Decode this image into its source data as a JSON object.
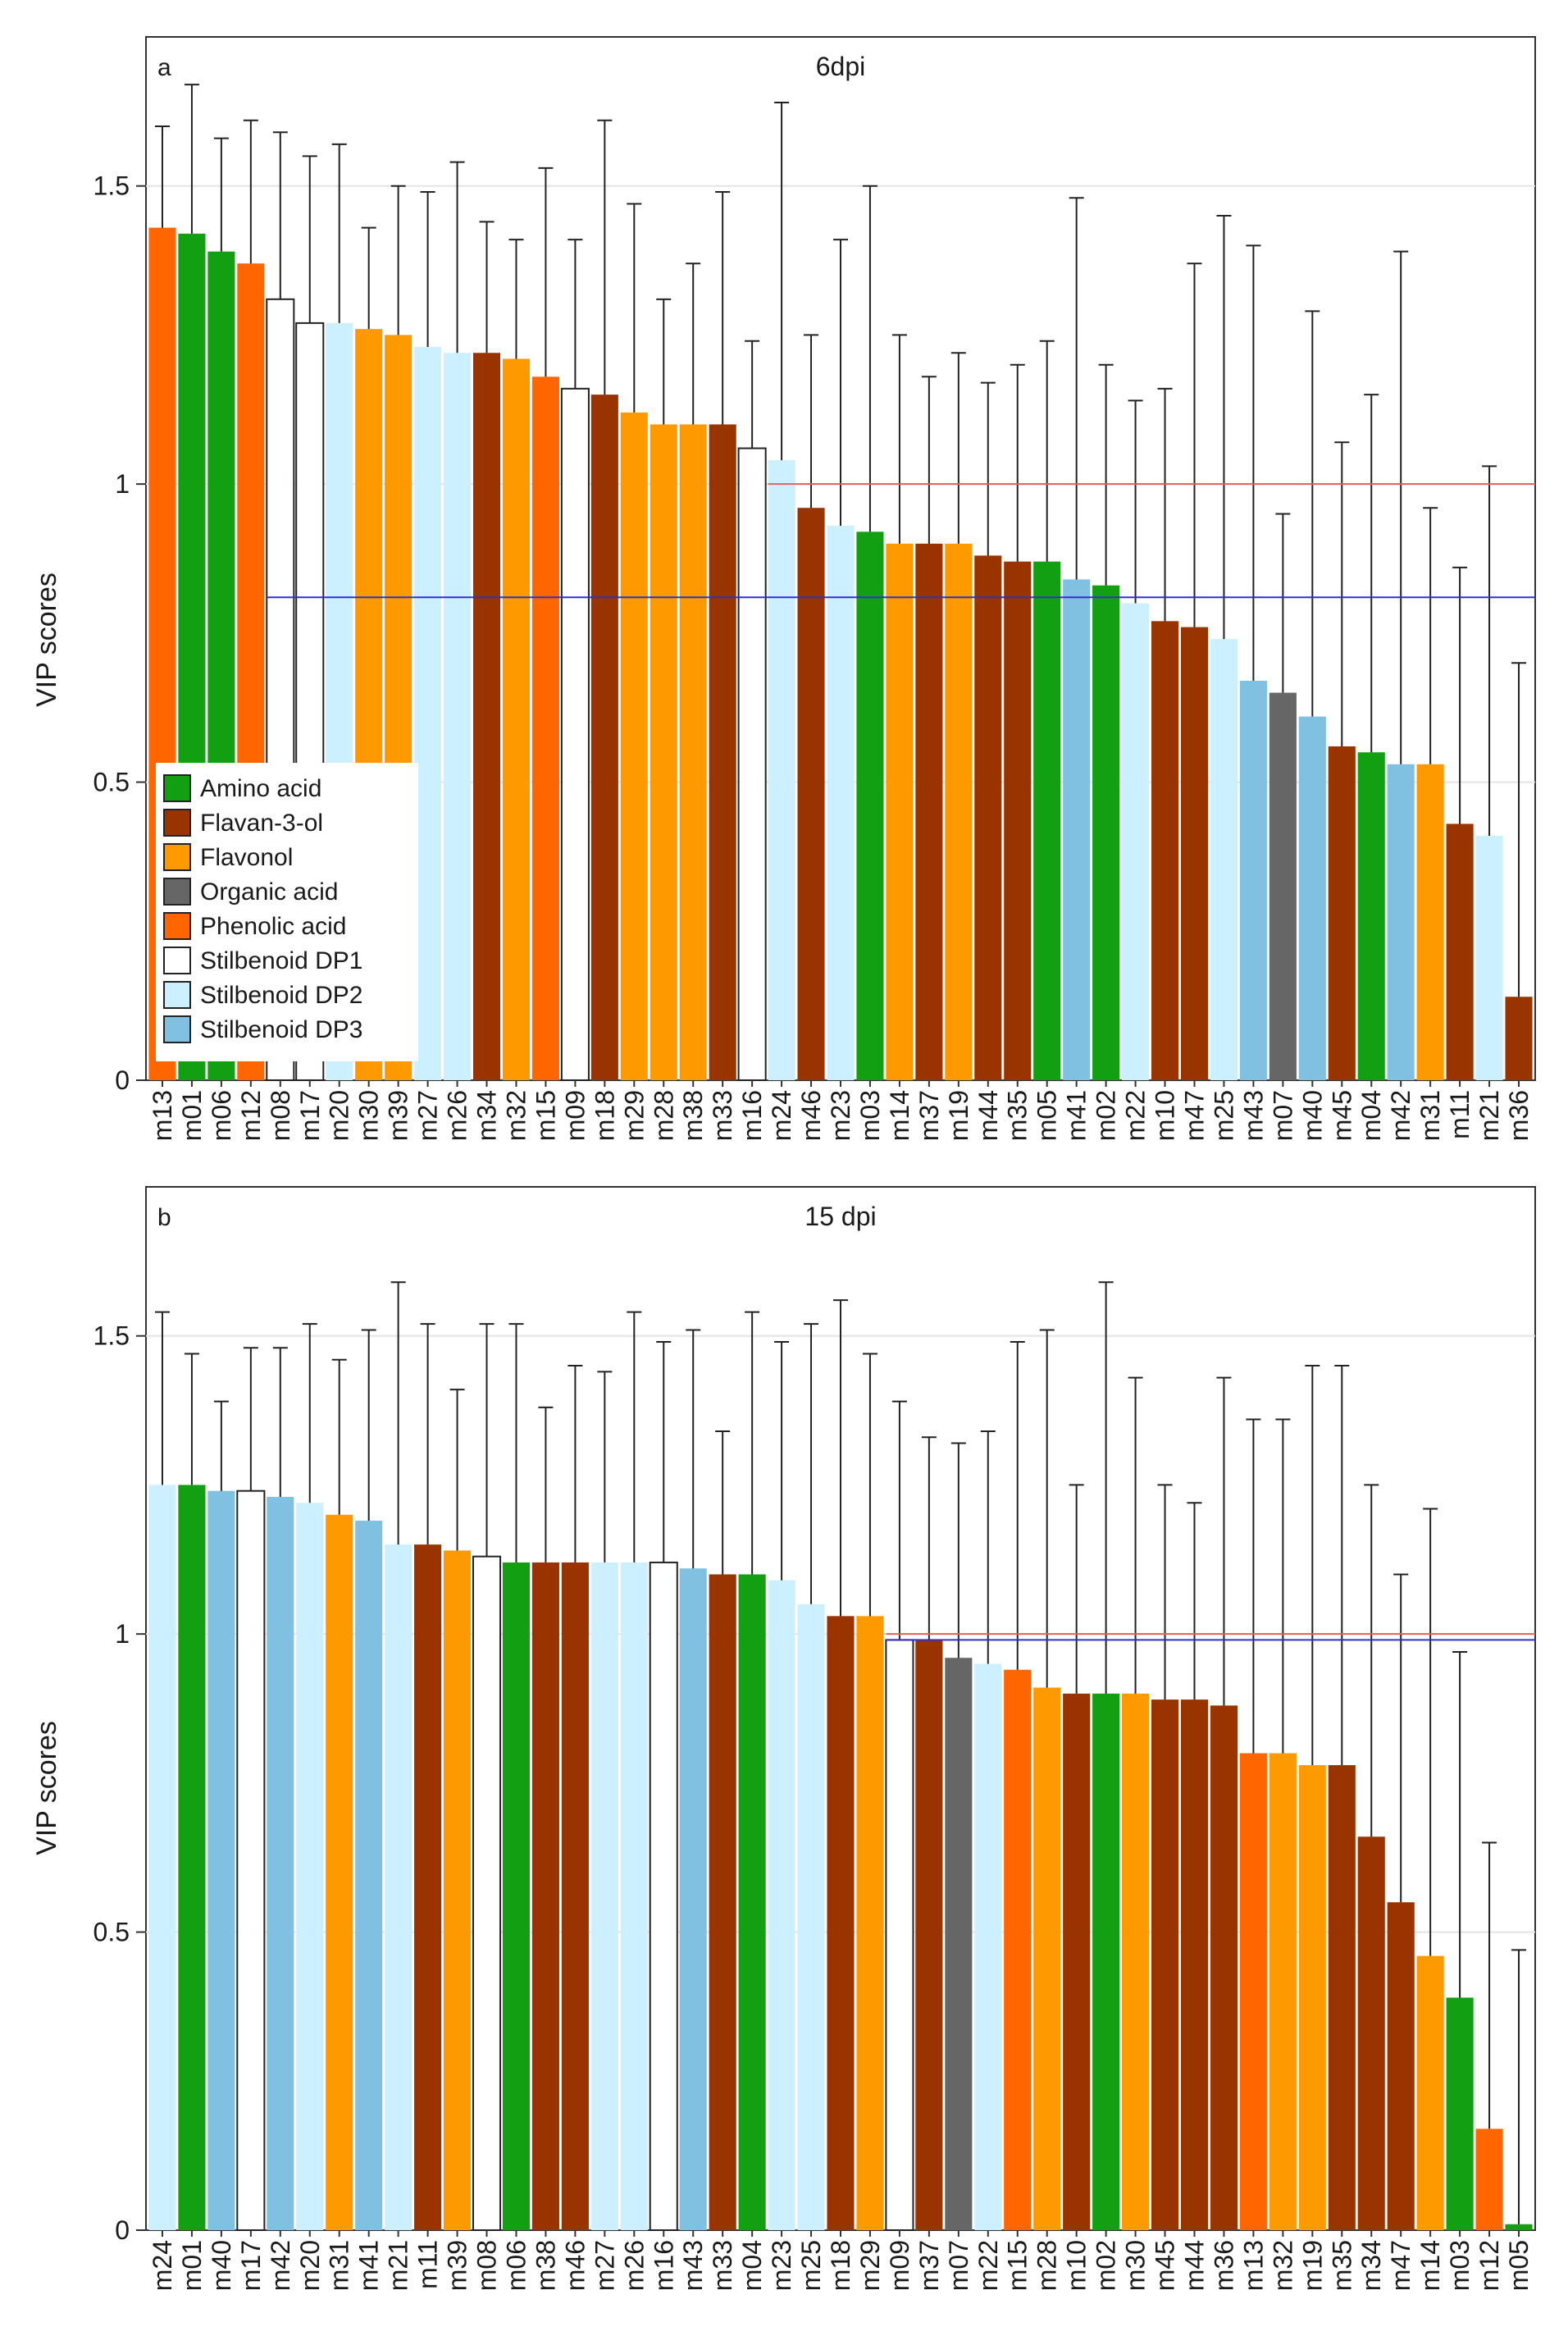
{
  "chart_data": [
    {
      "type": "bar",
      "panel_letter": "a",
      "title": "6dpi",
      "xlabel": "",
      "ylabel": "VIP scores",
      "ylim": [
        0,
        1.75
      ],
      "yticks": [
        0,
        0.5,
        1,
        1.5
      ],
      "ytick_labels": [
        "0",
        "0.5",
        "1",
        "1.5"
      ],
      "grid": true,
      "error_bars": "upper",
      "reference_lines": [
        {
          "value": 1.0,
          "color": "#e06060",
          "from_category": "m24"
        },
        {
          "value": 0.81,
          "color": "#3030d0",
          "from_category": "m08"
        }
      ],
      "legend_position": "lower-left",
      "categories": [
        "m13",
        "m01",
        "m06",
        "m12",
        "m08",
        "m17",
        "m20",
        "m30",
        "m39",
        "m27",
        "m26",
        "m34",
        "m32",
        "m15",
        "m09",
        "m18",
        "m29",
        "m28",
        "m38",
        "m33",
        "m16",
        "m24",
        "m46",
        "m23",
        "m03",
        "m14",
        "m37",
        "m19",
        "m44",
        "m35",
        "m05",
        "m41",
        "m02",
        "m22",
        "m10",
        "m47",
        "m25",
        "m43",
        "m07",
        "m40",
        "m45",
        "m04",
        "m42",
        "m31",
        "m11",
        "m21",
        "m36"
      ],
      "classes": [
        "Phenolic acid",
        "Amino acid",
        "Amino acid",
        "Phenolic acid",
        "Stilbenoid DP1",
        "Stilbenoid DP1",
        "Stilbenoid DP2",
        "Flavonol",
        "Flavonol",
        "Stilbenoid DP2",
        "Stilbenoid DP2",
        "Flavan-3-ol",
        "Flavonol",
        "Phenolic acid",
        "Stilbenoid DP1",
        "Flavan-3-ol",
        "Flavonol",
        "Flavonol",
        "Flavonol",
        "Flavan-3-ol",
        "Stilbenoid DP1",
        "Stilbenoid DP2",
        "Flavan-3-ol",
        "Stilbenoid DP2",
        "Amino acid",
        "Flavonol",
        "Flavan-3-ol",
        "Flavonol",
        "Flavan-3-ol",
        "Flavan-3-ol",
        "Amino acid",
        "Stilbenoid DP3",
        "Amino acid",
        "Stilbenoid DP2",
        "Flavan-3-ol",
        "Flavan-3-ol",
        "Stilbenoid DP2",
        "Stilbenoid DP3",
        "Organic acid",
        "Stilbenoid DP3",
        "Flavan-3-ol",
        "Amino acid",
        "Stilbenoid DP3",
        "Flavonol",
        "Flavan-3-ol",
        "Stilbenoid DP2",
        "Flavan-3-ol"
      ],
      "values": [
        1.43,
        1.42,
        1.39,
        1.37,
        1.31,
        1.27,
        1.27,
        1.26,
        1.25,
        1.23,
        1.22,
        1.22,
        1.21,
        1.18,
        1.16,
        1.15,
        1.12,
        1.1,
        1.1,
        1.1,
        1.06,
        1.04,
        0.96,
        0.93,
        0.92,
        0.9,
        0.9,
        0.9,
        0.88,
        0.87,
        0.87,
        0.84,
        0.83,
        0.8,
        0.77,
        0.76,
        0.74,
        0.67,
        0.65,
        0.61,
        0.56,
        0.55,
        0.53,
        0.53,
        0.43,
        0.41,
        0.14
      ],
      "error_top": [
        1.6,
        1.67,
        1.58,
        1.61,
        1.59,
        1.55,
        1.57,
        1.43,
        1.5,
        1.49,
        1.54,
        1.44,
        1.41,
        1.53,
        1.41,
        1.61,
        1.47,
        1.31,
        1.37,
        1.49,
        1.24,
        1.64,
        1.25,
        1.41,
        1.5,
        1.25,
        1.18,
        1.22,
        1.17,
        1.2,
        1.24,
        1.48,
        1.2,
        1.14,
        1.16,
        1.37,
        1.45,
        1.4,
        0.95,
        1.29,
        1.07,
        1.15,
        1.39,
        0.96,
        0.86,
        1.03,
        0.7
      ]
    },
    {
      "type": "bar",
      "panel_letter": "b",
      "title": "15 dpi",
      "xlabel": "",
      "ylabel": "VIP scores",
      "ylim": [
        0,
        1.75
      ],
      "yticks": [
        0,
        0.5,
        1,
        1.5
      ],
      "ytick_labels": [
        "0",
        "0.5",
        "1",
        "1.5"
      ],
      "grid": true,
      "error_bars": "upper",
      "reference_lines": [
        {
          "value": 1.0,
          "color": "#e06060",
          "from_category": "m09"
        },
        {
          "value": 0.99,
          "color": "#3030d0",
          "from_category": "m09"
        }
      ],
      "categories": [
        "m24",
        "m01",
        "m40",
        "m17",
        "m42",
        "m20",
        "m31",
        "m41",
        "m21",
        "m11",
        "m39",
        "m08",
        "m06",
        "m38",
        "m46",
        "m27",
        "m26",
        "m16",
        "m43",
        "m33",
        "m04",
        "m23",
        "m25",
        "m18",
        "m29",
        "m09",
        "m37",
        "m07",
        "m22",
        "m15",
        "m28",
        "m10",
        "m02",
        "m30",
        "m45",
        "m44",
        "m36",
        "m13",
        "m32",
        "m19",
        "m35",
        "m34",
        "m47",
        "m14",
        "m03",
        "m12",
        "m05"
      ],
      "classes": [
        "Stilbenoid DP2",
        "Amino acid",
        "Stilbenoid DP3",
        "Stilbenoid DP1",
        "Stilbenoid DP3",
        "Stilbenoid DP2",
        "Flavonol",
        "Stilbenoid DP3",
        "Stilbenoid DP2",
        "Flavan-3-ol",
        "Flavonol",
        "Stilbenoid DP1",
        "Amino acid",
        "Flavan-3-ol",
        "Flavan-3-ol",
        "Stilbenoid DP2",
        "Stilbenoid DP2",
        "Stilbenoid DP1",
        "Stilbenoid DP3",
        "Flavan-3-ol",
        "Amino acid",
        "Stilbenoid DP2",
        "Stilbenoid DP2",
        "Flavan-3-ol",
        "Flavonol",
        "Stilbenoid DP1",
        "Flavan-3-ol",
        "Organic acid",
        "Stilbenoid DP2",
        "Phenolic acid",
        "Flavonol",
        "Flavan-3-ol",
        "Amino acid",
        "Flavonol",
        "Flavan-3-ol",
        "Flavan-3-ol",
        "Flavan-3-ol",
        "Phenolic acid",
        "Flavonol",
        "Flavonol",
        "Flavan-3-ol",
        "Flavan-3-ol",
        "Flavan-3-ol",
        "Flavonol",
        "Amino acid",
        "Phenolic acid",
        "Amino acid"
      ],
      "values": [
        1.25,
        1.25,
        1.24,
        1.24,
        1.23,
        1.22,
        1.2,
        1.19,
        1.15,
        1.15,
        1.14,
        1.13,
        1.12,
        1.12,
        1.12,
        1.12,
        1.12,
        1.12,
        1.11,
        1.1,
        1.1,
        1.09,
        1.05,
        1.03,
        1.03,
        0.99,
        0.99,
        0.96,
        0.95,
        0.94,
        0.91,
        0.9,
        0.9,
        0.9,
        0.89,
        0.89,
        0.88,
        0.8,
        0.8,
        0.78,
        0.78,
        0.66,
        0.55,
        0.46,
        0.39,
        0.17,
        0.01
      ],
      "error_top": [
        1.54,
        1.47,
        1.39,
        1.48,
        1.48,
        1.52,
        1.46,
        1.51,
        1.59,
        1.52,
        1.41,
        1.52,
        1.52,
        1.38,
        1.45,
        1.44,
        1.54,
        1.49,
        1.51,
        1.34,
        1.54,
        1.49,
        1.52,
        1.56,
        1.47,
        1.39,
        1.33,
        1.32,
        1.34,
        1.49,
        1.51,
        1.25,
        1.59,
        1.43,
        1.25,
        1.22,
        1.43,
        1.36,
        1.36,
        1.45,
        1.45,
        1.25,
        1.1,
        1.21,
        0.97,
        0.65,
        0.47
      ]
    }
  ],
  "legend": [
    {
      "label": "Amino acid",
      "color": "#12a012"
    },
    {
      "label": "Flavan-3-ol",
      "color": "#993300"
    },
    {
      "label": "Flavonol",
      "color": "#ff9900"
    },
    {
      "label": "Organic acid",
      "color": "#666666"
    },
    {
      "label": "Phenolic acid",
      "color": "#ff6600"
    },
    {
      "label": "Stilbenoid DP1",
      "color": "#ffffff"
    },
    {
      "label": "Stilbenoid DP2",
      "color": "#ccf0ff"
    },
    {
      "label": "Stilbenoid DP3",
      "color": "#80c0e0"
    }
  ]
}
